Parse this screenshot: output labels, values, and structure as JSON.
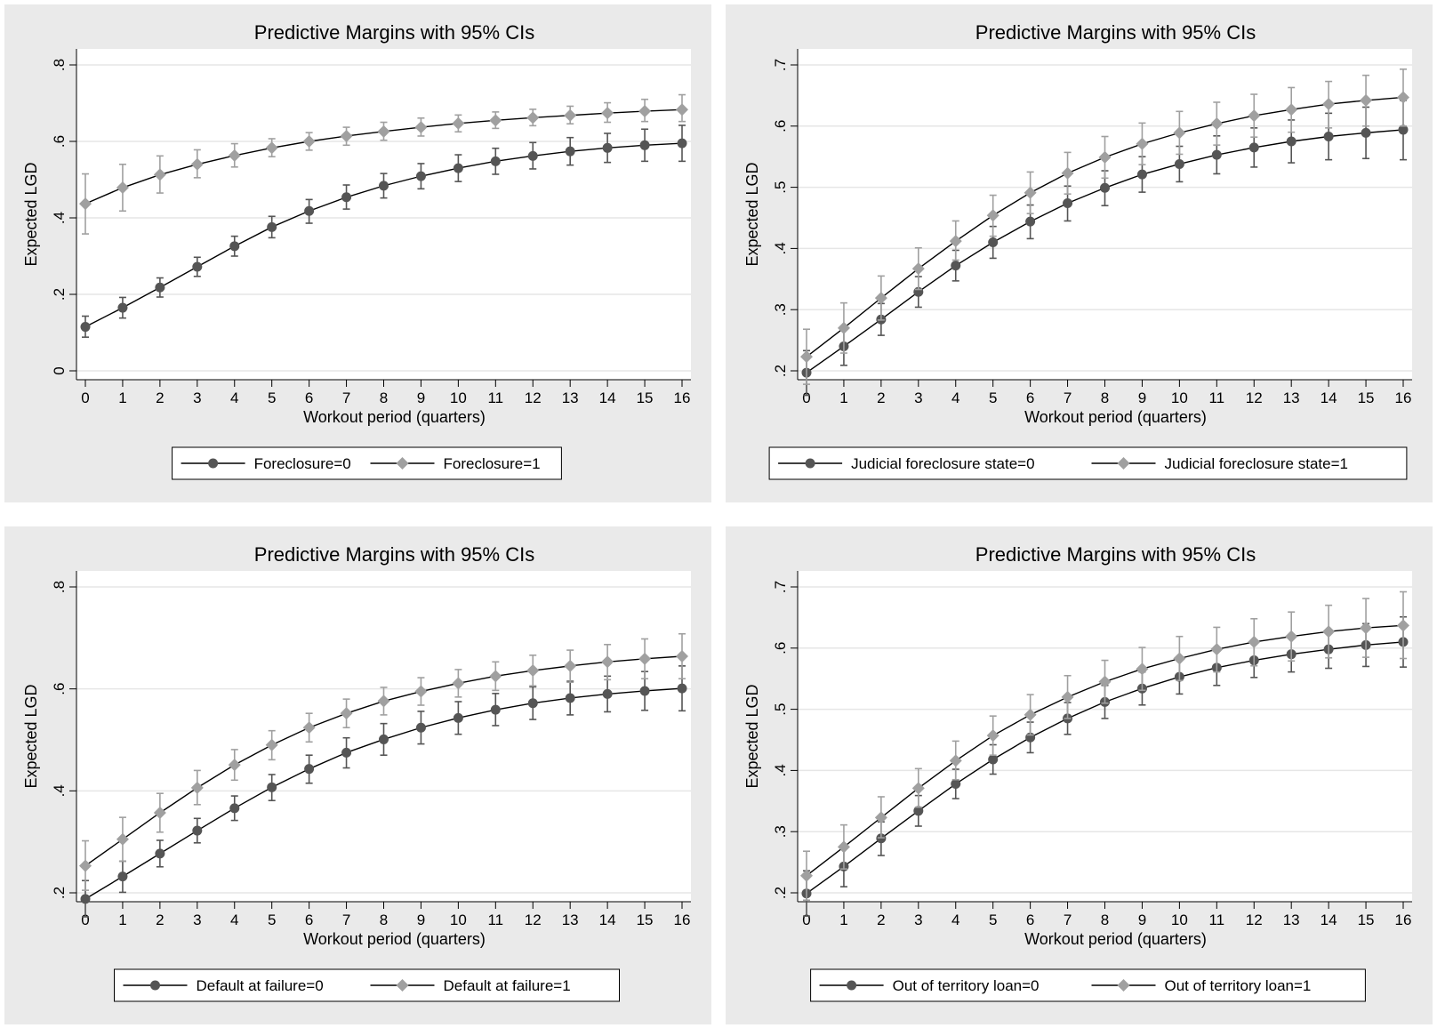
{
  "chart_data": [
    {
      "type": "line",
      "title": "Predictive Margins with 95% CIs",
      "xlabel": "Workout period (quarters)",
      "ylabel": "Expected LGD",
      "x": [
        0,
        1,
        2,
        3,
        4,
        5,
        6,
        7,
        8,
        9,
        10,
        11,
        12,
        13,
        14,
        15,
        16
      ],
      "ylim": [
        0,
        0.8
      ],
      "yticks": [
        0,
        0.2,
        0.4,
        0.6,
        0.8
      ],
      "ytick_labels": [
        "0",
        ".2",
        ".4",
        ".6",
        ".8"
      ],
      "grid": true,
      "legend_position": "bottom",
      "series": [
        {
          "name": "Foreclosure=0",
          "marker": "circle",
          "color": "#555555",
          "values": [
            0.115,
            0.165,
            0.218,
            0.272,
            0.326,
            0.376,
            0.418,
            0.454,
            0.484,
            0.509,
            0.53,
            0.548,
            0.562,
            0.574,
            0.583,
            0.59,
            0.595
          ],
          "ci_low": [
            0.088,
            0.138,
            0.193,
            0.247,
            0.3,
            0.348,
            0.386,
            0.423,
            0.452,
            0.476,
            0.495,
            0.514,
            0.528,
            0.538,
            0.545,
            0.548,
            0.548
          ],
          "ci_high": [
            0.143,
            0.192,
            0.243,
            0.297,
            0.352,
            0.404,
            0.448,
            0.486,
            0.516,
            0.542,
            0.565,
            0.582,
            0.597,
            0.61,
            0.621,
            0.632,
            0.642
          ]
        },
        {
          "name": "Foreclosure=1",
          "marker": "diamond",
          "color": "#a0a0a0",
          "values": [
            0.437,
            0.479,
            0.513,
            0.54,
            0.563,
            0.583,
            0.6,
            0.614,
            0.626,
            0.637,
            0.647,
            0.655,
            0.662,
            0.668,
            0.674,
            0.679,
            0.683
          ],
          "ci_low": [
            0.358,
            0.418,
            0.465,
            0.505,
            0.533,
            0.56,
            0.577,
            0.59,
            0.603,
            0.614,
            0.625,
            0.634,
            0.641,
            0.646,
            0.65,
            0.652,
            0.652
          ],
          "ci_high": [
            0.515,
            0.54,
            0.562,
            0.578,
            0.594,
            0.607,
            0.623,
            0.637,
            0.65,
            0.661,
            0.669,
            0.677,
            0.684,
            0.692,
            0.701,
            0.71,
            0.722
          ]
        }
      ]
    },
    {
      "type": "line",
      "title": "Predictive Margins with 95% CIs",
      "xlabel": "Workout period (quarters)",
      "ylabel": "Expected LGD",
      "x": [
        0,
        1,
        2,
        3,
        4,
        5,
        6,
        7,
        8,
        9,
        10,
        11,
        12,
        13,
        14,
        15,
        16
      ],
      "ylim": [
        0.2,
        0.7
      ],
      "yticks": [
        0.2,
        0.3,
        0.4,
        0.5,
        0.6,
        0.7
      ],
      "ytick_labels": [
        ".2",
        ".3",
        ".4",
        ".5",
        ".6",
        ".7"
      ],
      "grid": true,
      "legend_position": "bottom",
      "series": [
        {
          "name": "Judicial foreclosure state=0",
          "marker": "circle",
          "color": "#555555",
          "values": [
            0.197,
            0.24,
            0.284,
            0.329,
            0.372,
            0.41,
            0.444,
            0.474,
            0.499,
            0.521,
            0.538,
            0.553,
            0.565,
            0.575,
            0.583,
            0.589,
            0.594
          ],
          "ci_low": [
            0.16,
            0.209,
            0.258,
            0.304,
            0.347,
            0.384,
            0.416,
            0.445,
            0.47,
            0.492,
            0.509,
            0.522,
            0.533,
            0.54,
            0.545,
            0.547,
            0.545
          ],
          "ci_high": [
            0.233,
            0.27,
            0.31,
            0.354,
            0.397,
            0.436,
            0.471,
            0.502,
            0.527,
            0.55,
            0.567,
            0.584,
            0.597,
            0.61,
            0.621,
            0.631,
            0.642
          ]
        },
        {
          "name": "Judicial foreclosure state=1",
          "marker": "diamond",
          "color": "#a0a0a0",
          "values": [
            0.223,
            0.27,
            0.319,
            0.367,
            0.412,
            0.454,
            0.491,
            0.523,
            0.549,
            0.571,
            0.589,
            0.604,
            0.617,
            0.627,
            0.636,
            0.642,
            0.647
          ],
          "ci_low": [
            0.178,
            0.229,
            0.283,
            0.333,
            0.381,
            0.42,
            0.457,
            0.489,
            0.515,
            0.537,
            0.554,
            0.569,
            0.582,
            0.59,
            0.597,
            0.6,
            0.6
          ],
          "ci_high": [
            0.268,
            0.311,
            0.355,
            0.401,
            0.445,
            0.487,
            0.525,
            0.557,
            0.583,
            0.605,
            0.624,
            0.639,
            0.652,
            0.663,
            0.673,
            0.683,
            0.693
          ]
        }
      ]
    },
    {
      "type": "line",
      "title": "Predictive Margins with 95% CIs",
      "xlabel": "Workout period (quarters)",
      "ylabel": "Expected LGD",
      "x": [
        0,
        1,
        2,
        3,
        4,
        5,
        6,
        7,
        8,
        9,
        10,
        11,
        12,
        13,
        14,
        15,
        16
      ],
      "ylim": [
        0.2,
        0.8
      ],
      "yticks": [
        0.2,
        0.4,
        0.6,
        0.8
      ],
      "ytick_labels": [
        ".2",
        ".4",
        ".6",
        ".8"
      ],
      "grid": true,
      "legend_position": "bottom",
      "series": [
        {
          "name": "Default at failure=0",
          "marker": "circle",
          "color": "#555555",
          "values": [
            0.188,
            0.232,
            0.277,
            0.322,
            0.366,
            0.407,
            0.443,
            0.475,
            0.501,
            0.524,
            0.543,
            0.559,
            0.572,
            0.582,
            0.59,
            0.596,
            0.601
          ],
          "ci_low": [
            0.153,
            0.201,
            0.251,
            0.298,
            0.342,
            0.381,
            0.415,
            0.445,
            0.47,
            0.492,
            0.511,
            0.528,
            0.54,
            0.549,
            0.555,
            0.558,
            0.557
          ],
          "ci_high": [
            0.224,
            0.262,
            0.303,
            0.346,
            0.39,
            0.432,
            0.47,
            0.504,
            0.532,
            0.556,
            0.575,
            0.591,
            0.604,
            0.615,
            0.625,
            0.634,
            0.645
          ]
        },
        {
          "name": "Default at failure=1",
          "marker": "diamond",
          "color": "#a0a0a0",
          "values": [
            0.253,
            0.305,
            0.357,
            0.406,
            0.451,
            0.49,
            0.524,
            0.552,
            0.576,
            0.595,
            0.611,
            0.625,
            0.636,
            0.645,
            0.653,
            0.659,
            0.664
          ],
          "ci_low": [
            0.205,
            0.262,
            0.319,
            0.373,
            0.421,
            0.461,
            0.496,
            0.524,
            0.549,
            0.568,
            0.584,
            0.597,
            0.606,
            0.613,
            0.618,
            0.62,
            0.62
          ],
          "ci_high": [
            0.302,
            0.348,
            0.395,
            0.44,
            0.481,
            0.518,
            0.552,
            0.58,
            0.603,
            0.622,
            0.638,
            0.653,
            0.666,
            0.676,
            0.687,
            0.698,
            0.708
          ]
        }
      ]
    },
    {
      "type": "line",
      "title": "Predictive Margins with 95% CIs",
      "xlabel": "Workout period (quarters)",
      "ylabel": "Expected LGD",
      "x": [
        0,
        1,
        2,
        3,
        4,
        5,
        6,
        7,
        8,
        9,
        10,
        11,
        12,
        13,
        14,
        15,
        16
      ],
      "ylim": [
        0.2,
        0.7
      ],
      "yticks": [
        0.2,
        0.3,
        0.4,
        0.5,
        0.6,
        0.7
      ],
      "ytick_labels": [
        ".2",
        ".3",
        ".4",
        ".5",
        ".6",
        ".7"
      ],
      "grid": true,
      "legend_position": "bottom",
      "series": [
        {
          "name": "Out of territory loan=0",
          "marker": "circle",
          "color": "#555555",
          "values": [
            0.199,
            0.243,
            0.289,
            0.334,
            0.378,
            0.418,
            0.454,
            0.485,
            0.512,
            0.534,
            0.553,
            0.568,
            0.58,
            0.59,
            0.598,
            0.605,
            0.61
          ],
          "ci_low": [
            0.162,
            0.21,
            0.261,
            0.309,
            0.354,
            0.394,
            0.429,
            0.459,
            0.485,
            0.507,
            0.525,
            0.539,
            0.552,
            0.561,
            0.567,
            0.57,
            0.569
          ],
          "ci_high": [
            0.236,
            0.276,
            0.316,
            0.359,
            0.402,
            0.442,
            0.479,
            0.511,
            0.539,
            0.561,
            0.58,
            0.597,
            0.609,
            0.62,
            0.629,
            0.64,
            0.651
          ]
        },
        {
          "name": "Out of territory loan=1",
          "marker": "diamond",
          "color": "#a0a0a0",
          "values": [
            0.228,
            0.275,
            0.323,
            0.371,
            0.416,
            0.457,
            0.491,
            0.52,
            0.545,
            0.566,
            0.583,
            0.598,
            0.61,
            0.619,
            0.627,
            0.633,
            0.637
          ],
          "ci_low": [
            0.188,
            0.239,
            0.29,
            0.34,
            0.385,
            0.425,
            0.458,
            0.485,
            0.51,
            0.531,
            0.547,
            0.561,
            0.571,
            0.579,
            0.584,
            0.585,
            0.583
          ],
          "ci_high": [
            0.268,
            0.311,
            0.357,
            0.403,
            0.448,
            0.489,
            0.524,
            0.555,
            0.58,
            0.601,
            0.619,
            0.634,
            0.648,
            0.659,
            0.67,
            0.681,
            0.692
          ]
        }
      ]
    }
  ]
}
